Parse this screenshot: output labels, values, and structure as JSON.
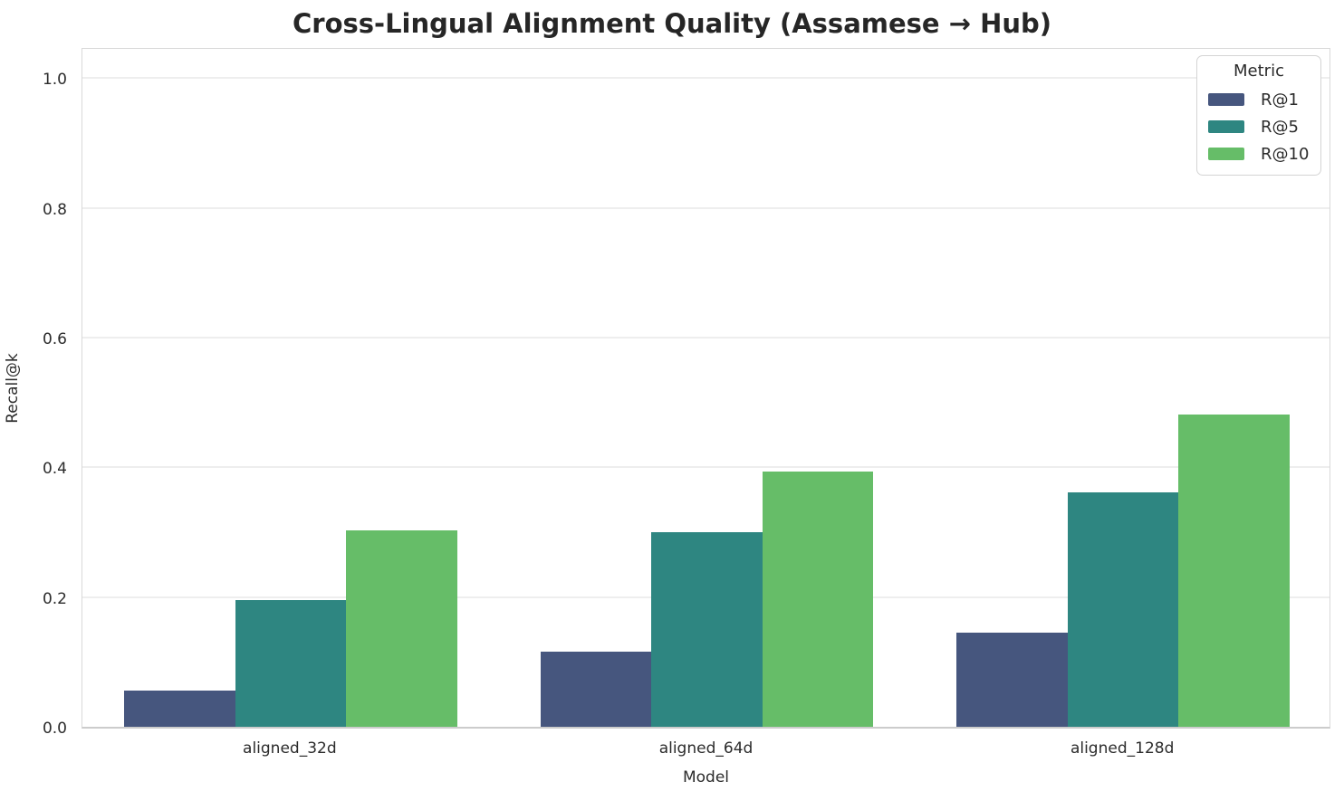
{
  "chart_data": {
    "type": "bar",
    "title": "Cross-Lingual Alignment Quality (Assamese → Hub)",
    "xlabel": "Model",
    "ylabel": "Recall@k",
    "categories": [
      "aligned_32d",
      "aligned_64d",
      "aligned_128d"
    ],
    "series": [
      {
        "name": "R@1",
        "color": "#46567e",
        "values": [
          0.056,
          0.116,
          0.145
        ]
      },
      {
        "name": "R@5",
        "color": "#2e8681",
        "values": [
          0.196,
          0.3,
          0.361
        ]
      },
      {
        "name": "R@10",
        "color": "#66bd68",
        "values": [
          0.303,
          0.394,
          0.481
        ]
      }
    ],
    "y_ticks": [
      0.0,
      0.2,
      0.4,
      0.6,
      0.8,
      1.0
    ],
    "ylim": [
      0,
      1.049
    ],
    "legend_title": "Metric",
    "legend_position": "upper right",
    "grid": true,
    "colors": {
      "text": "#2b2b2b",
      "gridline": "#eeeeee",
      "spine": "#d9d9d9",
      "background": "#ffffff"
    }
  }
}
